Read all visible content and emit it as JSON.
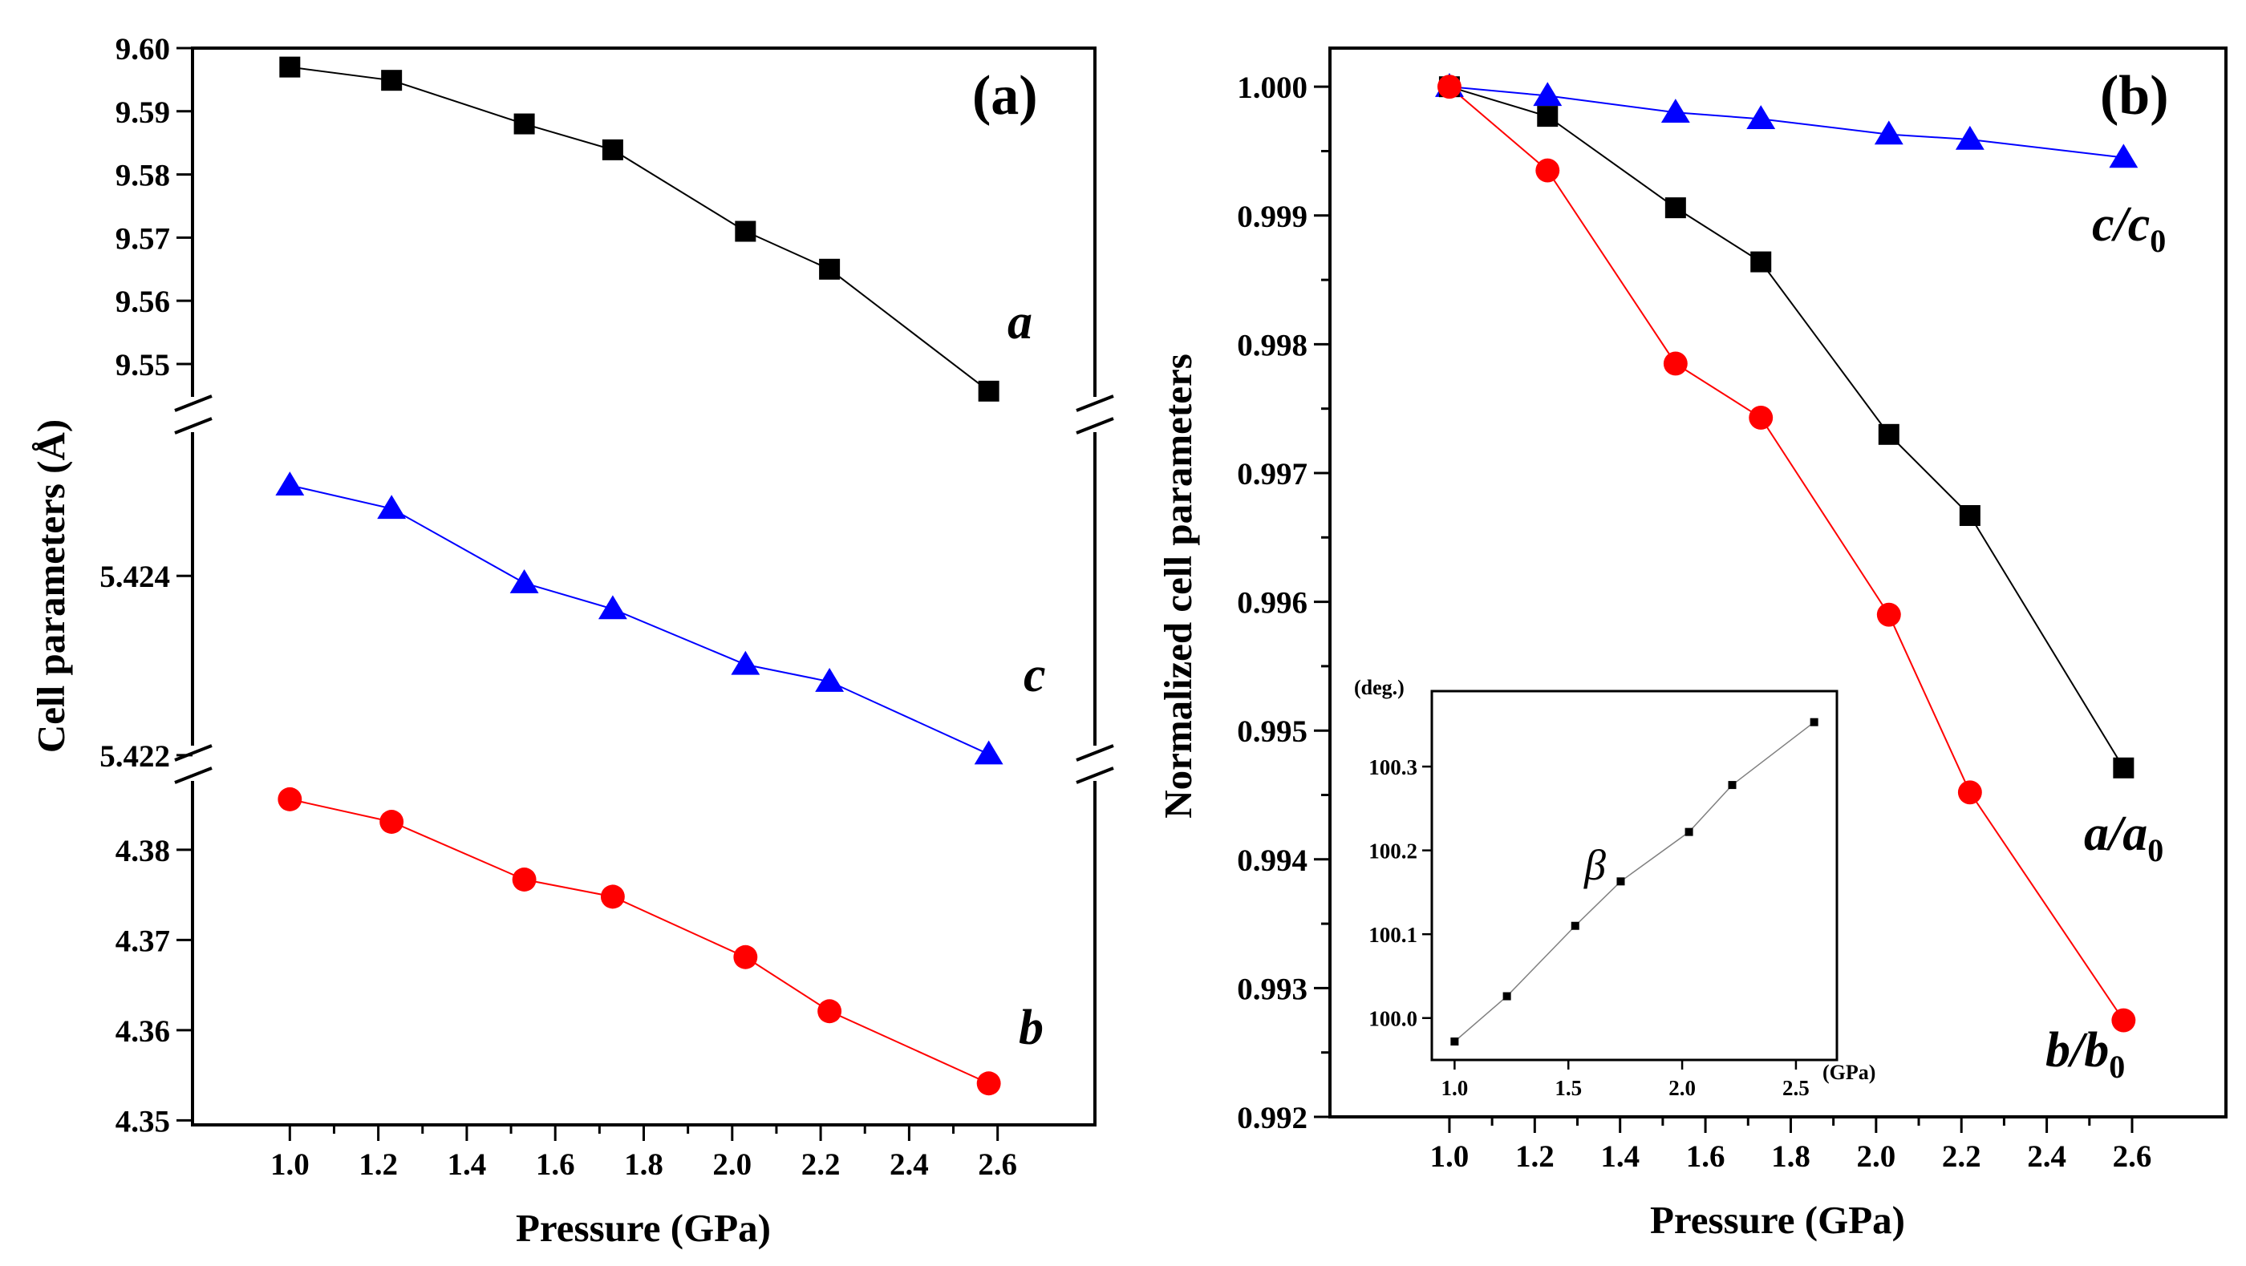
{
  "chart_data": [
    {
      "type": "line",
      "panel_label": "(a)",
      "xlabel": "Pressure (GPa)",
      "ylabel": "Cell parameters (Å)",
      "xlim": [
        0.78,
        2.82
      ],
      "xticks": [
        "1.0",
        "1.2",
        "1.4",
        "1.6",
        "1.8",
        "2.0",
        "2.2",
        "2.4",
        "2.6"
      ],
      "x": [
        1.0,
        1.23,
        1.53,
        1.73,
        2.03,
        2.22,
        2.58
      ],
      "broken_y_axis": true,
      "series": [
        {
          "name": "a",
          "color": "#000000",
          "marker": "square",
          "ylim": [
            9.542,
            9.6
          ],
          "yticks": [
            "9.60",
            "9.59",
            "9.58",
            "9.57",
            "9.56",
            "9.55"
          ],
          "values": [
            9.597,
            9.5949,
            9.588,
            9.5839,
            9.571,
            9.565,
            9.5457
          ]
        },
        {
          "name": "c",
          "color": "#0000ff",
          "marker": "triangle",
          "ylim": [
            5.4219,
            5.4258
          ],
          "yticks": [
            "5.424",
            "5.422"
          ],
          "values": [
            5.42501,
            5.42475,
            5.42392,
            5.42363,
            5.42301,
            5.42282,
            5.42201
          ]
        },
        {
          "name": "b",
          "color": "#ff0000",
          "marker": "circle",
          "ylim": [
            4.3495,
            4.3895
          ],
          "yticks": [
            "4.38",
            "4.37",
            "4.36",
            "4.35"
          ],
          "values": [
            4.3856,
            4.3831,
            4.3767,
            4.3748,
            4.3681,
            4.3621,
            4.3541
          ]
        }
      ]
    },
    {
      "type": "line",
      "panel_label": "(b)",
      "xlabel": "Pressure (GPa)",
      "ylabel": "Normalized cell parameters",
      "xlim": [
        0.72,
        2.82
      ],
      "ylim": [
        0.992,
        1.0003
      ],
      "xticks": [
        "1.0",
        "1.2",
        "1.4",
        "1.6",
        "1.8",
        "2.0",
        "2.2",
        "2.4",
        "2.6"
      ],
      "yticks": [
        "1.000",
        "0.999",
        "0.998",
        "0.997",
        "0.996",
        "0.995",
        "0.994",
        "0.993",
        "0.992"
      ],
      "x": [
        1.0,
        1.23,
        1.53,
        1.73,
        2.03,
        2.22,
        2.58
      ],
      "series": [
        {
          "name": "c/c0",
          "label_main": "c/c",
          "label_sub": "0",
          "color": "#0000ff",
          "marker": "triangle",
          "values": [
            1.0,
            0.99993,
            0.9998,
            0.99975,
            0.99963,
            0.99959,
            0.99945
          ]
        },
        {
          "name": "a/a0",
          "label_main": "a/a",
          "label_sub": "0",
          "color": "#000000",
          "marker": "square",
          "values": [
            1.0,
            0.99977,
            0.99906,
            0.99864,
            0.9973,
            0.99667,
            0.99471
          ]
        },
        {
          "name": "b/b0",
          "label_main": "b/b",
          "label_sub": "0",
          "color": "#ff0000",
          "marker": "circle",
          "values": [
            1.0,
            0.99935,
            0.99785,
            0.99743,
            0.9959,
            0.99452,
            0.99275
          ]
        }
      ],
      "inset": {
        "type": "line",
        "ylabel": "(deg.)",
        "xlabel": "(GPa)",
        "series_label": "β",
        "xlim": [
          0.9,
          2.68
        ],
        "ylim": [
          99.95,
          100.39
        ],
        "xticks": [
          "1.0",
          "1.5",
          "2.0",
          "2.5"
        ],
        "yticks": [
          "100.0",
          "100.1",
          "100.2",
          "100.3"
        ],
        "x": [
          1.0,
          1.23,
          1.53,
          1.73,
          2.03,
          2.22,
          2.58
        ],
        "values": [
          99.972,
          100.026,
          100.11,
          100.163,
          100.222,
          100.278,
          100.353
        ]
      }
    }
  ]
}
